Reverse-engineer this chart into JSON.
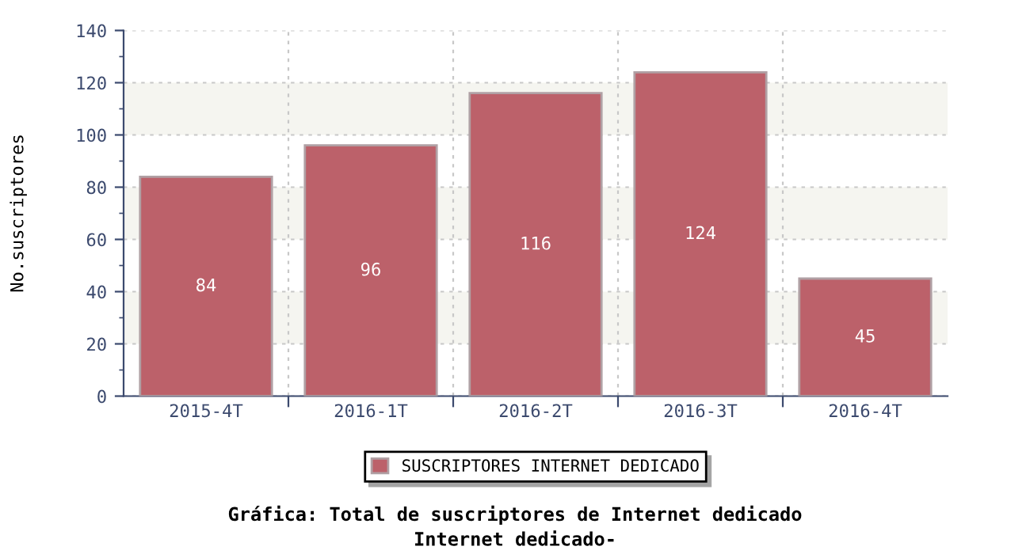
{
  "chart_data": {
    "type": "bar",
    "title": "Gráfica: Total de suscriptores de Internet dedicado",
    "subtitle": "Internet dedicado-",
    "ylabel": "No.suscriptores",
    "categories": [
      "2015-4T",
      "2016-1T",
      "2016-2T",
      "2016-3T",
      "2016-4T"
    ],
    "series": [
      {
        "name": "SUSCRIPTORES INTERNET DEDICADO",
        "color": "#bc616a",
        "values": [
          84,
          96,
          116,
          124,
          45
        ]
      }
    ],
    "ylim": [
      0,
      140
    ],
    "yticks": [
      0,
      20,
      40,
      60,
      80,
      100,
      120,
      140
    ],
    "grid": true,
    "legend": "bottom",
    "data_labels": true,
    "bands": [
      {
        "axis": "y",
        "from": 20,
        "to": 40,
        "color": "#f5f5f0"
      },
      {
        "axis": "y",
        "from": 60,
        "to": 80,
        "color": "#f5f5f0"
      },
      {
        "axis": "y",
        "from": 100,
        "to": 120,
        "color": "#f5f5f0"
      }
    ]
  }
}
